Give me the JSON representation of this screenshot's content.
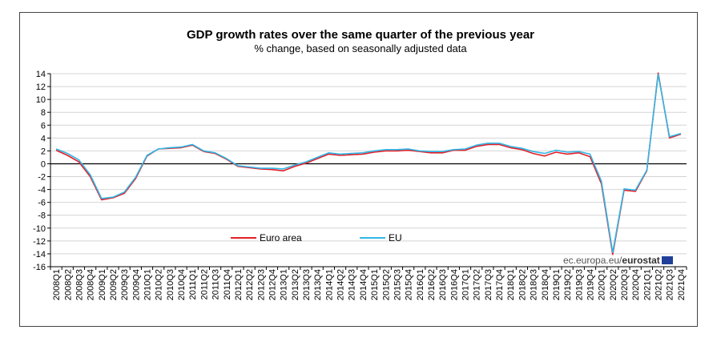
{
  "chart_data": {
    "type": "line",
    "title": "GDP growth rates over the same quarter of the previous year",
    "subtitle": "% change, based on seasonally adjusted data",
    "xlabel": "",
    "ylabel": "",
    "ylim": [
      -16,
      14
    ],
    "yticks": [
      14,
      12,
      10,
      8,
      6,
      4,
      2,
      0,
      -2,
      -4,
      -6,
      -8,
      -10,
      -12,
      -14,
      -16
    ],
    "grid": true,
    "legend_position": "bottom-left",
    "categories": [
      "2008Q1",
      "2008Q2",
      "2008Q3",
      "2008Q4",
      "2009Q1",
      "2009Q2",
      "2009Q3",
      "2009Q4",
      "2010Q1",
      "2010Q2",
      "2010Q3",
      "2010Q4",
      "2011Q1",
      "2011Q2",
      "2011Q3",
      "2011Q4",
      "2012Q1",
      "2012Q2",
      "2012Q3",
      "2012Q4",
      "2013Q1",
      "2013Q2",
      "2013Q3",
      "2013Q4",
      "2014Q1",
      "2014Q2",
      "2014Q3",
      "2014Q4",
      "2015Q1",
      "2015Q2",
      "2015Q3",
      "2015Q4",
      "2016Q1",
      "2016Q2",
      "2016Q3",
      "2016Q4",
      "2017Q1",
      "2017Q2",
      "2017Q3",
      "2017Q4",
      "2018Q1",
      "2018Q2",
      "2018Q3",
      "2018Q4",
      "2019Q1",
      "2019Q2",
      "2019Q3",
      "2019Q4",
      "2020Q1",
      "2020Q2",
      "2020Q3",
      "2020Q4",
      "2021Q1",
      "2021Q2",
      "2021Q3",
      "2021Q4"
    ],
    "series": [
      {
        "name": "Euro area",
        "color": "#e31f26",
        "values": [
          2.1,
          1.3,
          0.3,
          -2.0,
          -5.6,
          -5.3,
          -4.6,
          -2.3,
          1.2,
          2.3,
          2.4,
          2.5,
          2.9,
          1.9,
          1.6,
          0.7,
          -0.4,
          -0.6,
          -0.8,
          -0.9,
          -1.1,
          -0.4,
          0.1,
          0.8,
          1.5,
          1.3,
          1.4,
          1.5,
          1.8,
          2.0,
          2.0,
          2.1,
          1.9,
          1.7,
          1.7,
          2.1,
          2.1,
          2.7,
          3.0,
          3.0,
          2.5,
          2.2,
          1.6,
          1.2,
          1.8,
          1.5,
          1.7,
          1.1,
          -3.1,
          -14.1,
          -4.1,
          -4.3,
          -1.1,
          14.1,
          4.0,
          4.6
        ]
      },
      {
        "name": "EU",
        "color": "#31b6e6",
        "values": [
          2.3,
          1.6,
          0.6,
          -1.7,
          -5.4,
          -5.2,
          -4.4,
          -2.1,
          1.3,
          2.3,
          2.5,
          2.6,
          3.0,
          2.0,
          1.7,
          0.8,
          -0.3,
          -0.5,
          -0.7,
          -0.7,
          -0.8,
          -0.2,
          0.3,
          1.0,
          1.7,
          1.5,
          1.6,
          1.7,
          2.0,
          2.2,
          2.2,
          2.3,
          2.0,
          1.9,
          1.9,
          2.2,
          2.3,
          2.9,
          3.2,
          3.2,
          2.7,
          2.4,
          1.9,
          1.6,
          2.1,
          1.8,
          1.9,
          1.5,
          -2.7,
          -13.8,
          -3.9,
          -4.1,
          -1.0,
          13.9,
          4.2,
          4.7
        ]
      }
    ]
  },
  "source": {
    "text": "ec.europa.eu/",
    "brand": "eurostat"
  }
}
